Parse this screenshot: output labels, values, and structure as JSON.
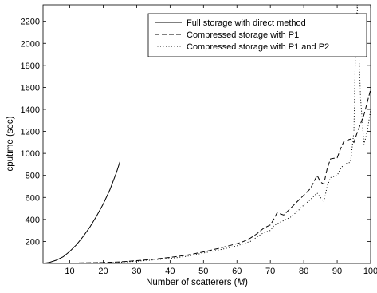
{
  "chart_data": {
    "type": "line",
    "title": "",
    "xlabel": "Number of scatterers",
    "xlabel_symbol": "M",
    "ylabel": "cputime (sec)",
    "xlim": [
      2,
      100
    ],
    "ylim": [
      0,
      2350
    ],
    "xticks": [
      10,
      20,
      30,
      40,
      50,
      60,
      70,
      80,
      90,
      100
    ],
    "xtick_labels": [
      "10",
      "20",
      "30",
      "40",
      "50",
      "60",
      "70",
      "80",
      "90",
      "100"
    ],
    "yticks": [
      200,
      400,
      600,
      800,
      1000,
      1200,
      1400,
      1600,
      1800,
      2000,
      2200
    ],
    "ytick_labels": [
      "200",
      "400",
      "600",
      "800",
      "1000",
      "1200",
      "1400",
      "1600",
      "1800",
      "2000",
      "2200"
    ],
    "grid": false,
    "legend_position": "top-right",
    "series": [
      {
        "name": "Full storage with direct method",
        "style": "solid",
        "color": "#000000",
        "x": [
          2,
          4,
          6,
          8,
          10,
          12,
          14,
          16,
          18,
          20,
          22,
          24,
          25
        ],
        "y": [
          0,
          10,
          30,
          60,
          110,
          170,
          245,
          330,
          430,
          540,
          670,
          830,
          925
        ]
      },
      {
        "name": "Compressed storage with P1",
        "style": "dashed",
        "color": "#000000",
        "x": [
          2,
          10,
          20,
          25,
          30,
          35,
          40,
          45,
          50,
          55,
          60,
          62,
          64,
          66,
          68,
          70,
          71,
          72,
          74,
          76,
          78,
          80,
          82,
          84,
          85,
          86,
          87,
          88,
          90,
          91,
          92,
          94,
          95,
          96,
          98,
          100
        ],
        "y": [
          0,
          3,
          8,
          14,
          25,
          38,
          55,
          75,
          105,
          140,
          180,
          200,
          230,
          270,
          320,
          350,
          400,
          460,
          440,
          500,
          560,
          620,
          680,
          800,
          740,
          720,
          860,
          950,
          960,
          1040,
          1110,
          1130,
          1100,
          1190,
          1350,
          1580
        ]
      },
      {
        "name": "Compressed storage with P1 and P2",
        "style": "dotted",
        "color": "#000000",
        "x": [
          2,
          10,
          20,
          25,
          30,
          35,
          40,
          45,
          50,
          55,
          60,
          62,
          64,
          66,
          68,
          70,
          71,
          72,
          74,
          76,
          78,
          80,
          82,
          84,
          85,
          86,
          87,
          88,
          90,
          91,
          92,
          94,
          95,
          95.5,
          96,
          96.5,
          97,
          98,
          99,
          100
        ],
        "y": [
          0,
          2,
          6,
          11,
          20,
          32,
          45,
          65,
          95,
          125,
          160,
          180,
          200,
          240,
          280,
          300,
          340,
          360,
          390,
          420,
          470,
          530,
          580,
          640,
          600,
          560,
          700,
          780,
          800,
          860,
          900,
          920,
          1200,
          2000,
          2350,
          1900,
          1500,
          1080,
          1200,
          1400
        ]
      }
    ]
  }
}
